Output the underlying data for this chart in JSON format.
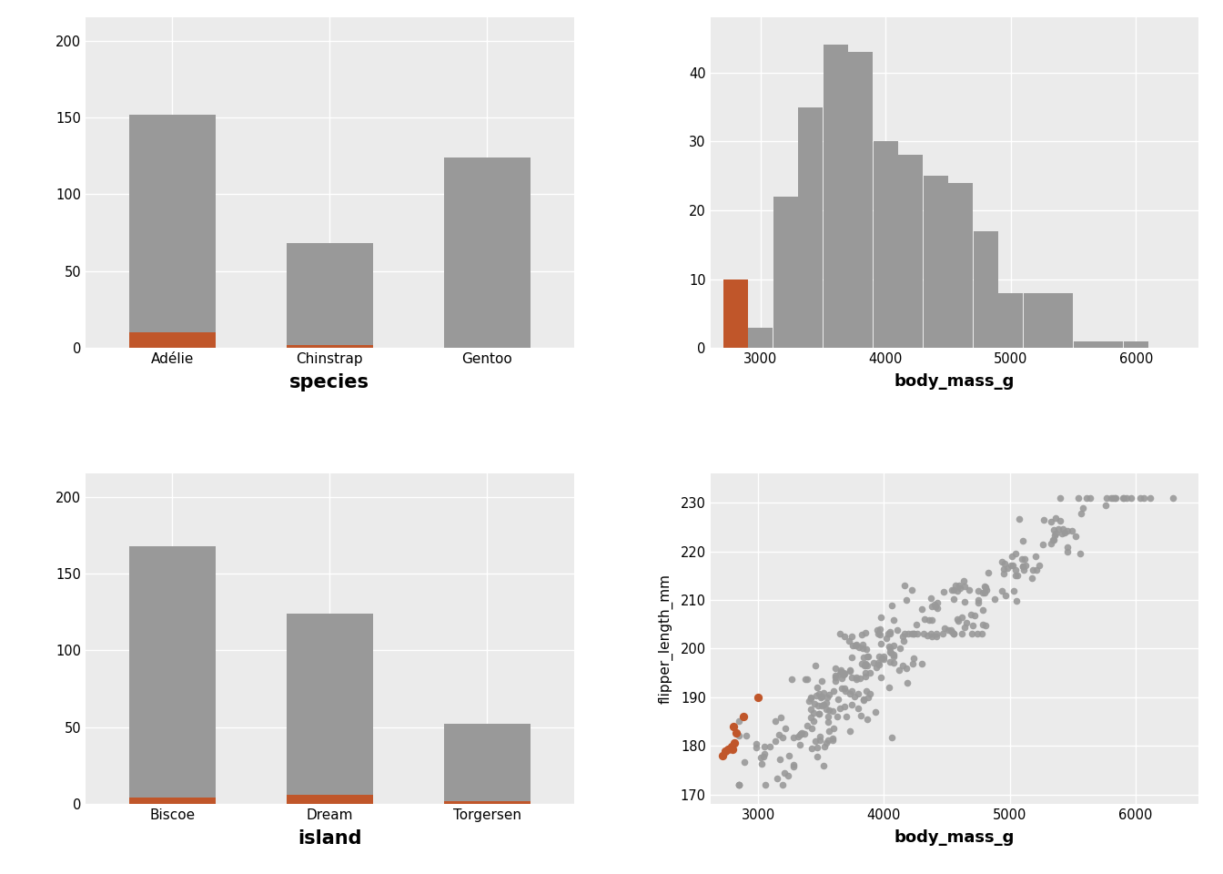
{
  "background_color": "#EBEBEB",
  "outer_background": "#FFFFFF",
  "gray_color": "#999999",
  "orange_color": "#C0562A",
  "white_grid_color": "#FFFFFF",
  "species_categories": [
    "Adélie",
    "Chinstrap",
    "Gentoo"
  ],
  "species_total": [
    152,
    68,
    124
  ],
  "species_orange": [
    10,
    2,
    0
  ],
  "island_categories": [
    "Biscoe",
    "Dream",
    "Torgersen"
  ],
  "island_total": [
    168,
    124,
    52
  ],
  "island_orange": [
    4,
    6,
    2
  ],
  "hist_bin_edges": [
    2700,
    2900,
    3100,
    3300,
    3500,
    3700,
    3900,
    4100,
    4300,
    4500,
    4700,
    4900,
    5100,
    5300,
    5500,
    5700,
    5900,
    6100,
    6300
  ],
  "hist_counts_gray": [
    0,
    3,
    22,
    35,
    44,
    43,
    30,
    28,
    25,
    24,
    17,
    8,
    8,
    8,
    1,
    1,
    1,
    0
  ],
  "hist_orange_bin_start": 2700,
  "hist_orange_bin_end": 2900,
  "hist_orange_count": 10,
  "xticks_hist": [
    3000,
    4000,
    5000,
    6000
  ],
  "yticks_hist": [
    0,
    10,
    20,
    30,
    40
  ],
  "xlim_hist": [
    2600,
    6500
  ],
  "ylim_hist": [
    0,
    48
  ],
  "xticks_scatter": [
    3000,
    4000,
    5000,
    6000
  ],
  "yticks_scatter": [
    170,
    180,
    190,
    200,
    210,
    220,
    230
  ],
  "xlim_scatter": [
    2620,
    6500
  ],
  "ylim_scatter": [
    168,
    236
  ],
  "yticks_species": [
    0,
    50,
    100,
    150,
    200
  ],
  "ylim_species": [
    0,
    215
  ],
  "yticks_island": [
    0,
    50,
    100,
    150,
    200
  ],
  "ylim_island": [
    0,
    215
  ]
}
